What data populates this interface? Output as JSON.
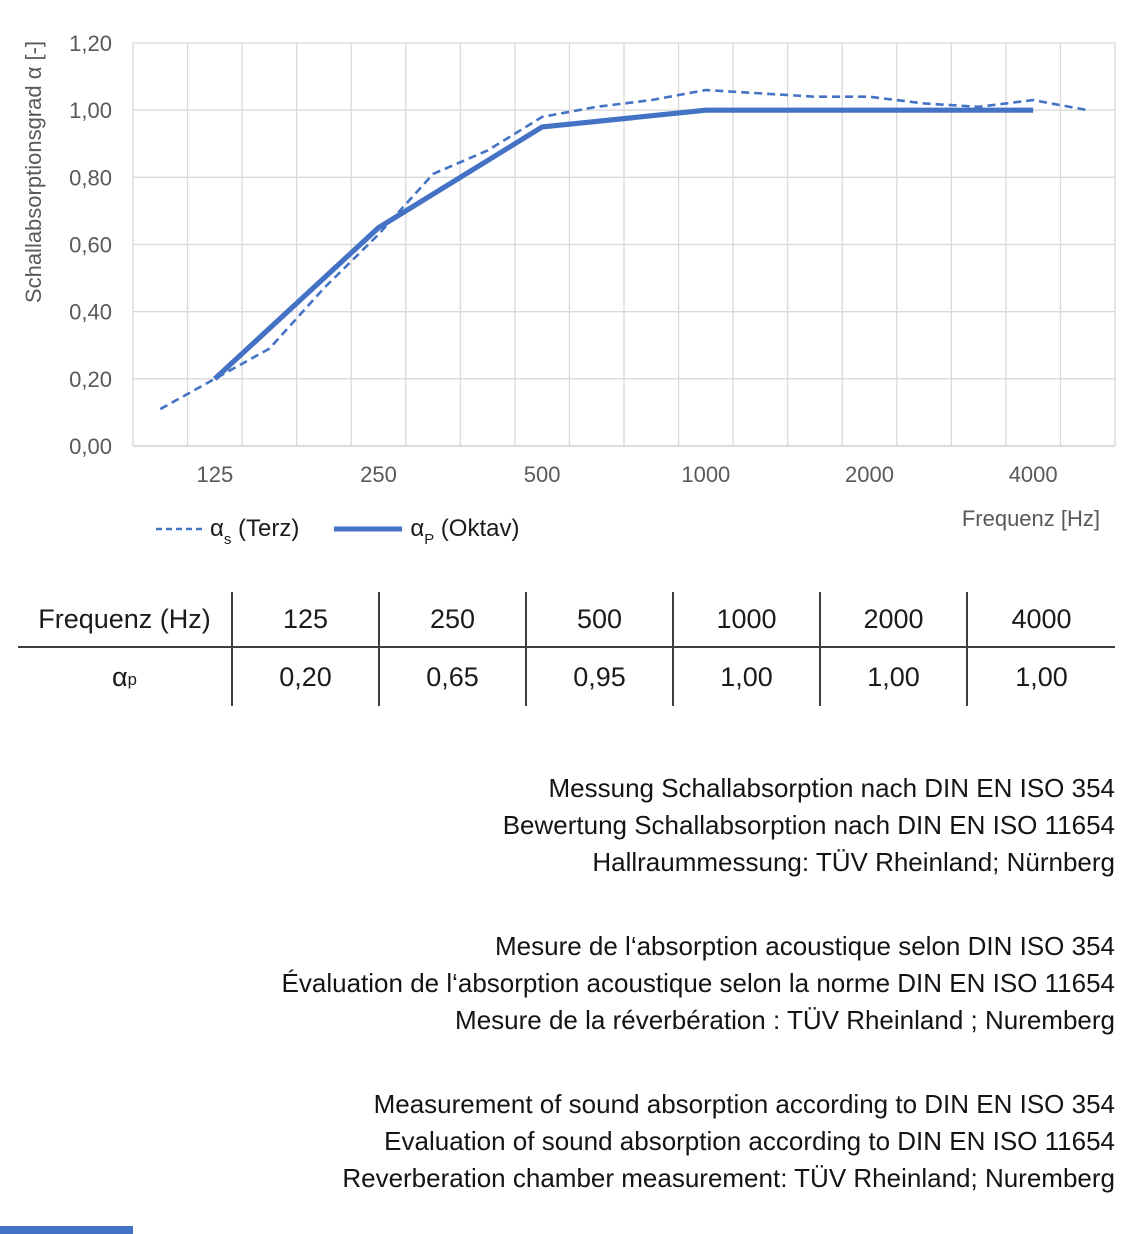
{
  "chart": {
    "y_axis_title": "Schallabsorptionsgrad α [-]",
    "x_axis_title": "Frequenz [Hz]",
    "legend": {
      "terz": {
        "alpha": "α",
        "sub": "s",
        "rest": " (Terz)"
      },
      "oktav": {
        "alpha": "α",
        "sub": "P",
        "rest": " (Oktav)"
      }
    }
  },
  "chart_data": {
    "type": "line",
    "x_bands": [
      100,
      125,
      160,
      200,
      250,
      315,
      400,
      500,
      630,
      800,
      1000,
      1250,
      1600,
      2000,
      2500,
      3150,
      4000,
      5000
    ],
    "x_ticks": [
      125,
      250,
      500,
      1000,
      2000,
      4000
    ],
    "x_tick_labels": [
      "125",
      "250",
      "500",
      "1000",
      "2000",
      "4000"
    ],
    "y_tick_labels": [
      "0,00",
      "0,20",
      "0,40",
      "0,60",
      "0,80",
      "1,00",
      "1,20"
    ],
    "ylim": [
      0,
      1.2
    ],
    "grid": true,
    "legend_position": "bottom-left",
    "series": [
      {
        "name": "αs (Terz)",
        "style": "dashed",
        "color": "#4472c4",
        "x": [
          100,
          125,
          160,
          200,
          250,
          315,
          400,
          500,
          630,
          800,
          1000,
          1250,
          1600,
          2000,
          2500,
          3150,
          4000,
          5000
        ],
        "values": [
          0.11,
          0.2,
          0.29,
          0.47,
          0.63,
          0.81,
          0.88,
          0.98,
          1.01,
          1.03,
          1.06,
          1.05,
          1.04,
          1.04,
          1.02,
          1.01,
          1.03,
          1.0
        ]
      },
      {
        "name": "αP (Oktav)",
        "style": "solid",
        "color": "#4472c4",
        "x": [
          125,
          250,
          500,
          1000,
          2000,
          4000
        ],
        "values": [
          0.2,
          0.65,
          0.95,
          1.0,
          1.0,
          1.0
        ]
      }
    ]
  },
  "table": {
    "header": [
      "Frequenz (Hz)",
      "125",
      "250",
      "500",
      "1000",
      "2000",
      "4000"
    ],
    "row_label": {
      "alpha": "α",
      "sub": "p"
    },
    "values": [
      "0,20",
      "0,65",
      "0,95",
      "1,00",
      "1,00",
      "1,00"
    ]
  },
  "notes": {
    "german": [
      "Messung Schallabsorption nach DIN EN ISO 354",
      "Bewertung Schallabsorption nach DIN EN ISO 11654",
      "Hallraummessung: TÜV Rheinland; Nürnberg"
    ],
    "french": [
      "Mesure de l‘absorption acoustique selon DIN ISO 354",
      "Évaluation de l‘absorption acoustique selon la norme DIN EN ISO 11654",
      "Mesure de la réverbération : TÜV Rheinland ; Nuremberg"
    ],
    "english": [
      "Measurement of sound absorption according to DIN EN ISO 354",
      "Evaluation of sound absorption according to DIN EN ISO 11654",
      "Reverberation chamber measurement: TÜV Rheinland; Nuremberg"
    ]
  },
  "colors": {
    "line_blue": "#4472c4",
    "grid_line": "#d9d9d9",
    "axis_line": "#c8c8c8",
    "axis_text": "#595959",
    "text": "#1b1b1b",
    "table_rule": "#3d4043"
  }
}
